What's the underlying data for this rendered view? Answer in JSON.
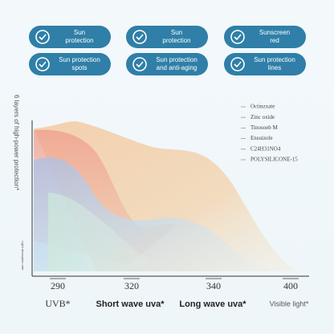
{
  "badges": [
    {
      "line1": "Sun",
      "line2": "protection"
    },
    {
      "line1": "Sun",
      "line2": "protection"
    },
    {
      "line1": "Sunscreen",
      "line2": "red"
    },
    {
      "line1": "Sun protection",
      "line2": "spots"
    },
    {
      "line1": "Sun protection",
      "line2": "and anti-aging"
    },
    {
      "line1": "Sun protection",
      "line2": "lines"
    }
  ],
  "chart": {
    "y_label": "6 layers of high-power protection*",
    "y_bottom_label": "Light absorption rate",
    "legend": [
      "Octinzxate",
      "Zinc oxide",
      "Tinosoeb M",
      "Ensuizole",
      "C24H31NO4",
      "POLYSILICONE-15"
    ],
    "x_ticks": [
      "290",
      "320",
      "340",
      "400"
    ],
    "regions": [
      "UVB*",
      "Short wave uva*",
      "Long wave uva*",
      "Visible light*"
    ]
  }
}
